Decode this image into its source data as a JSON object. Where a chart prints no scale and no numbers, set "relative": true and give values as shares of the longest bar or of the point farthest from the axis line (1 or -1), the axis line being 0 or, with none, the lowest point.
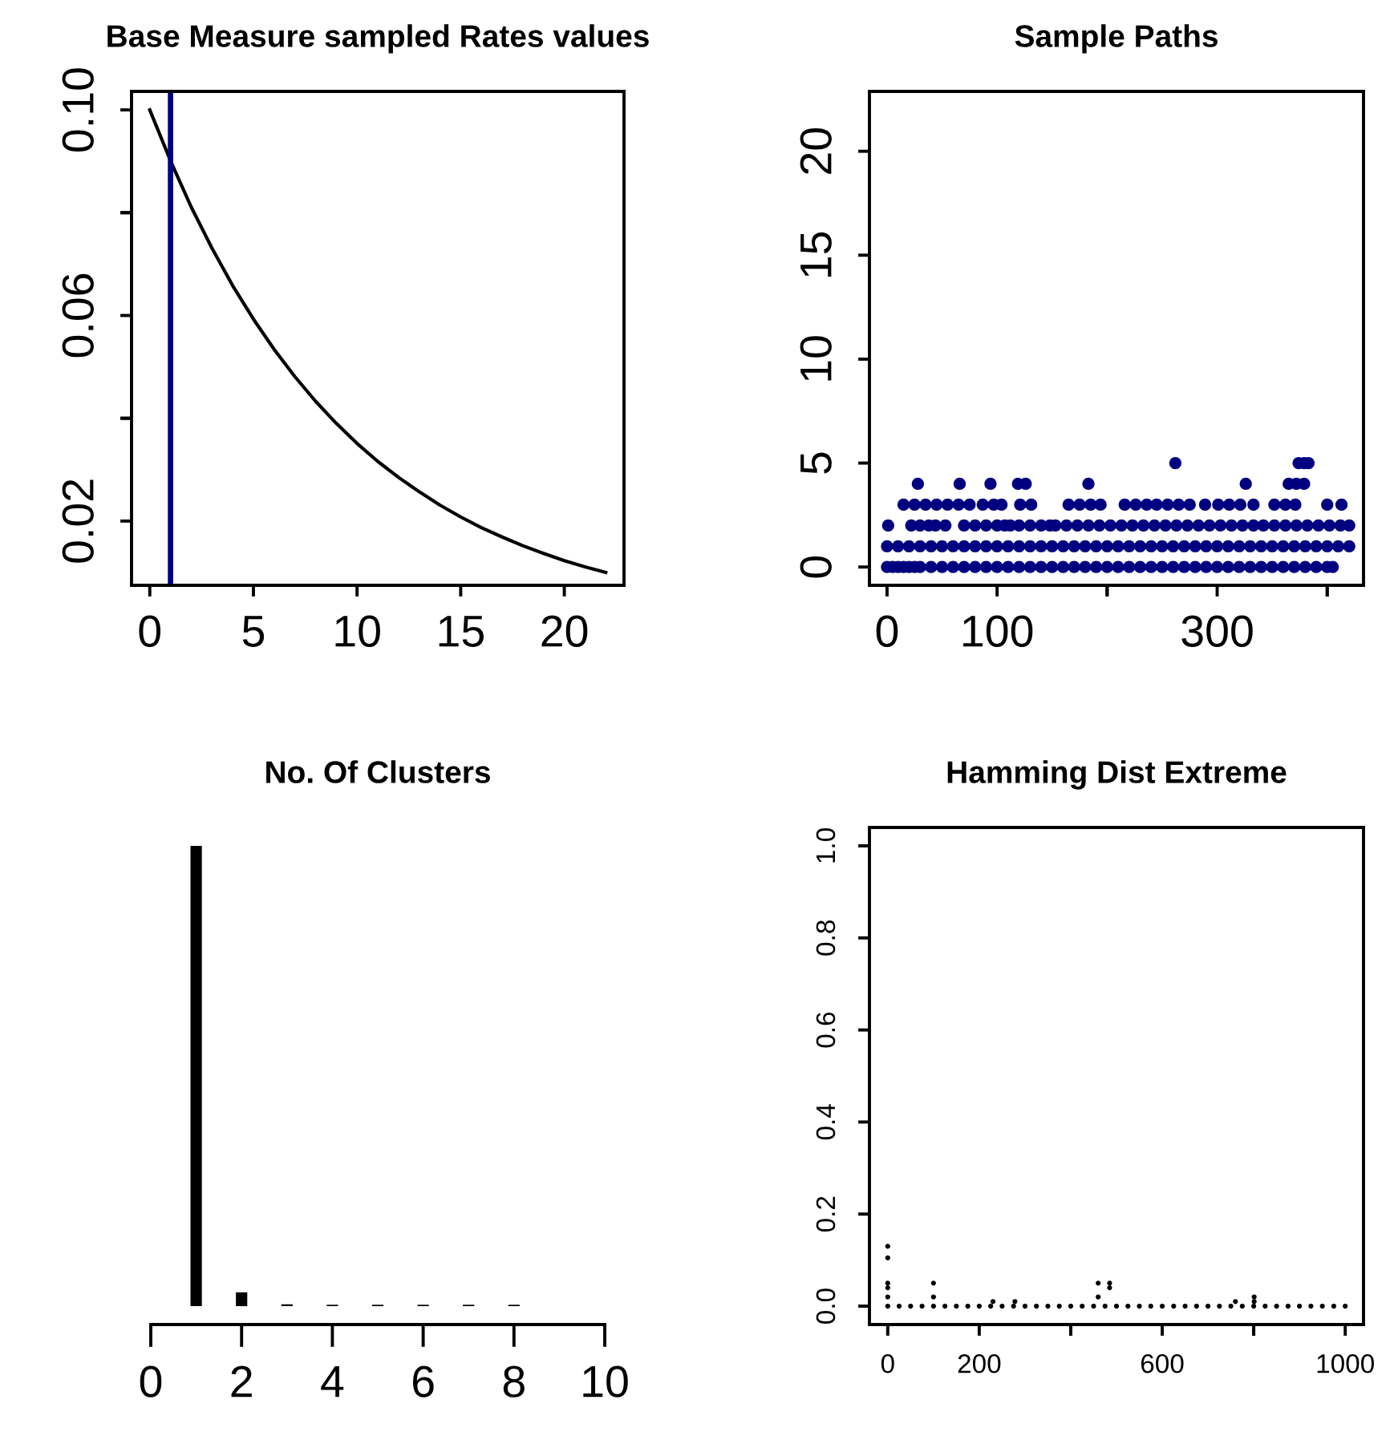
{
  "chart_data": [
    {
      "type": "line",
      "title": "Base Measure sampled Rates values",
      "color": "#000000",
      "x": [
        0,
        1,
        2,
        3,
        4,
        5,
        6,
        7,
        8,
        9,
        10,
        11,
        12,
        13,
        14,
        15,
        16,
        17,
        18,
        19,
        20,
        21,
        22
      ],
      "values": [
        0.1,
        0.0901,
        0.0811,
        0.0731,
        0.0658,
        0.0593,
        0.0534,
        0.0481,
        0.0433,
        0.039,
        0.0351,
        0.0316,
        0.0285,
        0.0257,
        0.0231,
        0.0208,
        0.0187,
        0.0169,
        0.0152,
        0.0137,
        0.0123,
        0.0111,
        0.01
      ],
      "xlim": [
        -0.88,
        22.88
      ],
      "xticks": [
        0,
        5,
        10,
        15,
        20
      ],
      "ylim": [
        0.0075,
        0.1036
      ],
      "yticks": [
        {
          "value": 0.02,
          "label": "0.02"
        },
        {
          "value": 0.04,
          "label": null
        },
        {
          "value": 0.06,
          "label": "0.06"
        },
        {
          "value": 0.08,
          "label": null
        },
        {
          "value": 0.1,
          "label": "0.10"
        }
      ],
      "ref_lines": [
        {
          "axis": "x",
          "value": 1,
          "color": "#000080"
        }
      ]
    },
    {
      "type": "scatter",
      "title": "Sample Paths",
      "color": "#000080",
      "marker": "circle",
      "x": [
        0,
        5,
        10,
        15,
        20,
        25,
        30,
        40,
        50,
        60,
        70,
        80,
        90,
        100,
        110,
        120,
        130,
        140,
        150,
        160,
        170,
        180,
        190,
        200,
        210,
        220,
        230,
        240,
        250,
        260,
        270,
        280,
        290,
        300,
        310,
        320,
        330,
        340,
        350,
        360,
        370,
        380,
        390,
        400,
        405,
        0,
        10,
        20,
        30,
        40,
        50,
        60,
        70,
        80,
        90,
        100,
        110,
        120,
        130,
        140,
        150,
        160,
        170,
        180,
        190,
        200,
        210,
        220,
        230,
        240,
        250,
        260,
        270,
        280,
        290,
        300,
        310,
        320,
        330,
        340,
        350,
        360,
        370,
        380,
        390,
        400,
        410,
        420,
        1,
        22,
        30,
        38,
        44,
        53,
        70,
        80,
        90,
        100,
        107,
        112,
        120,
        130,
        140,
        148,
        153,
        163,
        173,
        183,
        193,
        203,
        213,
        223,
        233,
        243,
        253,
        263,
        273,
        283,
        293,
        303,
        313,
        323,
        333,
        342,
        352,
        362,
        372,
        382,
        392,
        402,
        412,
        420,
        15,
        25,
        35,
        45,
        55,
        65,
        75,
        87,
        97,
        104,
        121,
        131,
        165,
        175,
        185,
        194,
        216,
        226,
        236,
        245,
        255,
        265,
        275,
        289,
        301,
        311,
        321,
        333,
        352,
        362,
        371,
        400,
        413,
        28,
        66,
        94,
        119,
        126,
        183,
        326,
        365,
        372,
        379,
        262,
        374,
        379,
        383
      ],
      "values": [
        0,
        0,
        0,
        0,
        0,
        0,
        0,
        0,
        0,
        0,
        0,
        0,
        0,
        0,
        0,
        0,
        0,
        0,
        0,
        0,
        0,
        0,
        0,
        0,
        0,
        0,
        0,
        0,
        0,
        0,
        0,
        0,
        0,
        0,
        0,
        0,
        0,
        0,
        0,
        0,
        0,
        0,
        0,
        0,
        0,
        1,
        1,
        1,
        1,
        1,
        1,
        1,
        1,
        1,
        1,
        1,
        1,
        1,
        1,
        1,
        1,
        1,
        1,
        1,
        1,
        1,
        1,
        1,
        1,
        1,
        1,
        1,
        1,
        1,
        1,
        1,
        1,
        1,
        1,
        1,
        1,
        1,
        1,
        1,
        1,
        1,
        1,
        1,
        2,
        2,
        2,
        2,
        2,
        2,
        2,
        2,
        2,
        2,
        2,
        2,
        2,
        2,
        2,
        2,
        2,
        2,
        2,
        2,
        2,
        2,
        2,
        2,
        2,
        2,
        2,
        2,
        2,
        2,
        2,
        2,
        2,
        2,
        2,
        2,
        2,
        2,
        2,
        2,
        2,
        2,
        2,
        2,
        3,
        3,
        3,
        3,
        3,
        3,
        3,
        3,
        3,
        3,
        3,
        3,
        3,
        3,
        3,
        3,
        3,
        3,
        3,
        3,
        3,
        3,
        3,
        3,
        3,
        3,
        3,
        3,
        3,
        3,
        3,
        3,
        3,
        4,
        4,
        4,
        4,
        4,
        4,
        4,
        4,
        4,
        4,
        5,
        5,
        5,
        5
      ],
      "xlim": [
        -16,
        433
      ],
      "xticks": [
        0,
        100,
        {
          "value": 200,
          "label": null
        },
        300,
        {
          "value": 400,
          "label": null
        }
      ],
      "ylim": [
        -0.88,
        22.88
      ],
      "yticks": [
        0,
        5,
        10,
        15,
        20
      ]
    },
    {
      "type": "bar",
      "title": "No. Of Clusters",
      "color": "#000000",
      "relative": true,
      "tick_labels": "x",
      "x": [
        1,
        2,
        3,
        4,
        5,
        6,
        7,
        8
      ],
      "values": [
        1,
        0.03,
        0.004,
        0.003,
        0.003,
        0.003,
        0.003,
        0.003
      ],
      "xlim": [
        0,
        10
      ],
      "xticks": [
        0,
        2,
        4,
        6,
        8,
        10
      ]
    },
    {
      "type": "scatter",
      "title": "Hamming Dist Extreme",
      "color": "#000000",
      "marker": "circle",
      "x": [
        0,
        25,
        50,
        75,
        100,
        125,
        150,
        175,
        200,
        225,
        250,
        275,
        300,
        325,
        350,
        375,
        400,
        425,
        450,
        475,
        500,
        525,
        550,
        575,
        600,
        625,
        650,
        675,
        700,
        725,
        750,
        775,
        800,
        825,
        850,
        875,
        900,
        925,
        950,
        975,
        1000,
        0,
        0,
        0,
        0,
        0,
        100,
        100,
        230,
        278,
        460,
        460,
        485,
        485,
        760,
        801,
        801
      ],
      "values": [
        0,
        0,
        0,
        0,
        0,
        0,
        0,
        0,
        0,
        0,
        0,
        0,
        0,
        0,
        0,
        0,
        0,
        0,
        0,
        0,
        0,
        0,
        0,
        0,
        0,
        0,
        0,
        0,
        0,
        0,
        0,
        0,
        0,
        0,
        0,
        0,
        0,
        0,
        0,
        0,
        0,
        0.13,
        0.105,
        0.05,
        0.04,
        0.02,
        0.05,
        0.02,
        0.01,
        0.01,
        0.05,
        0.02,
        0.05,
        0.04,
        0.01,
        0.02,
        0.01
      ],
      "xlim": [
        -40,
        1040
      ],
      "xticks": [
        0,
        200,
        {
          "value": 400,
          "label": null
        },
        600,
        {
          "value": 800,
          "label": null
        },
        1000
      ],
      "ylim": [
        -0.04,
        1.04
      ],
      "yticks": [
        {
          "value": 0,
          "label": "0.0"
        },
        {
          "value": 0.2,
          "label": "0.2"
        },
        {
          "value": 0.4,
          "label": "0.4"
        },
        {
          "value": 0.6,
          "label": "0.6"
        },
        {
          "value": 0.8,
          "label": "0.8"
        },
        {
          "value": 1,
          "label": "1.0"
        }
      ]
    }
  ]
}
